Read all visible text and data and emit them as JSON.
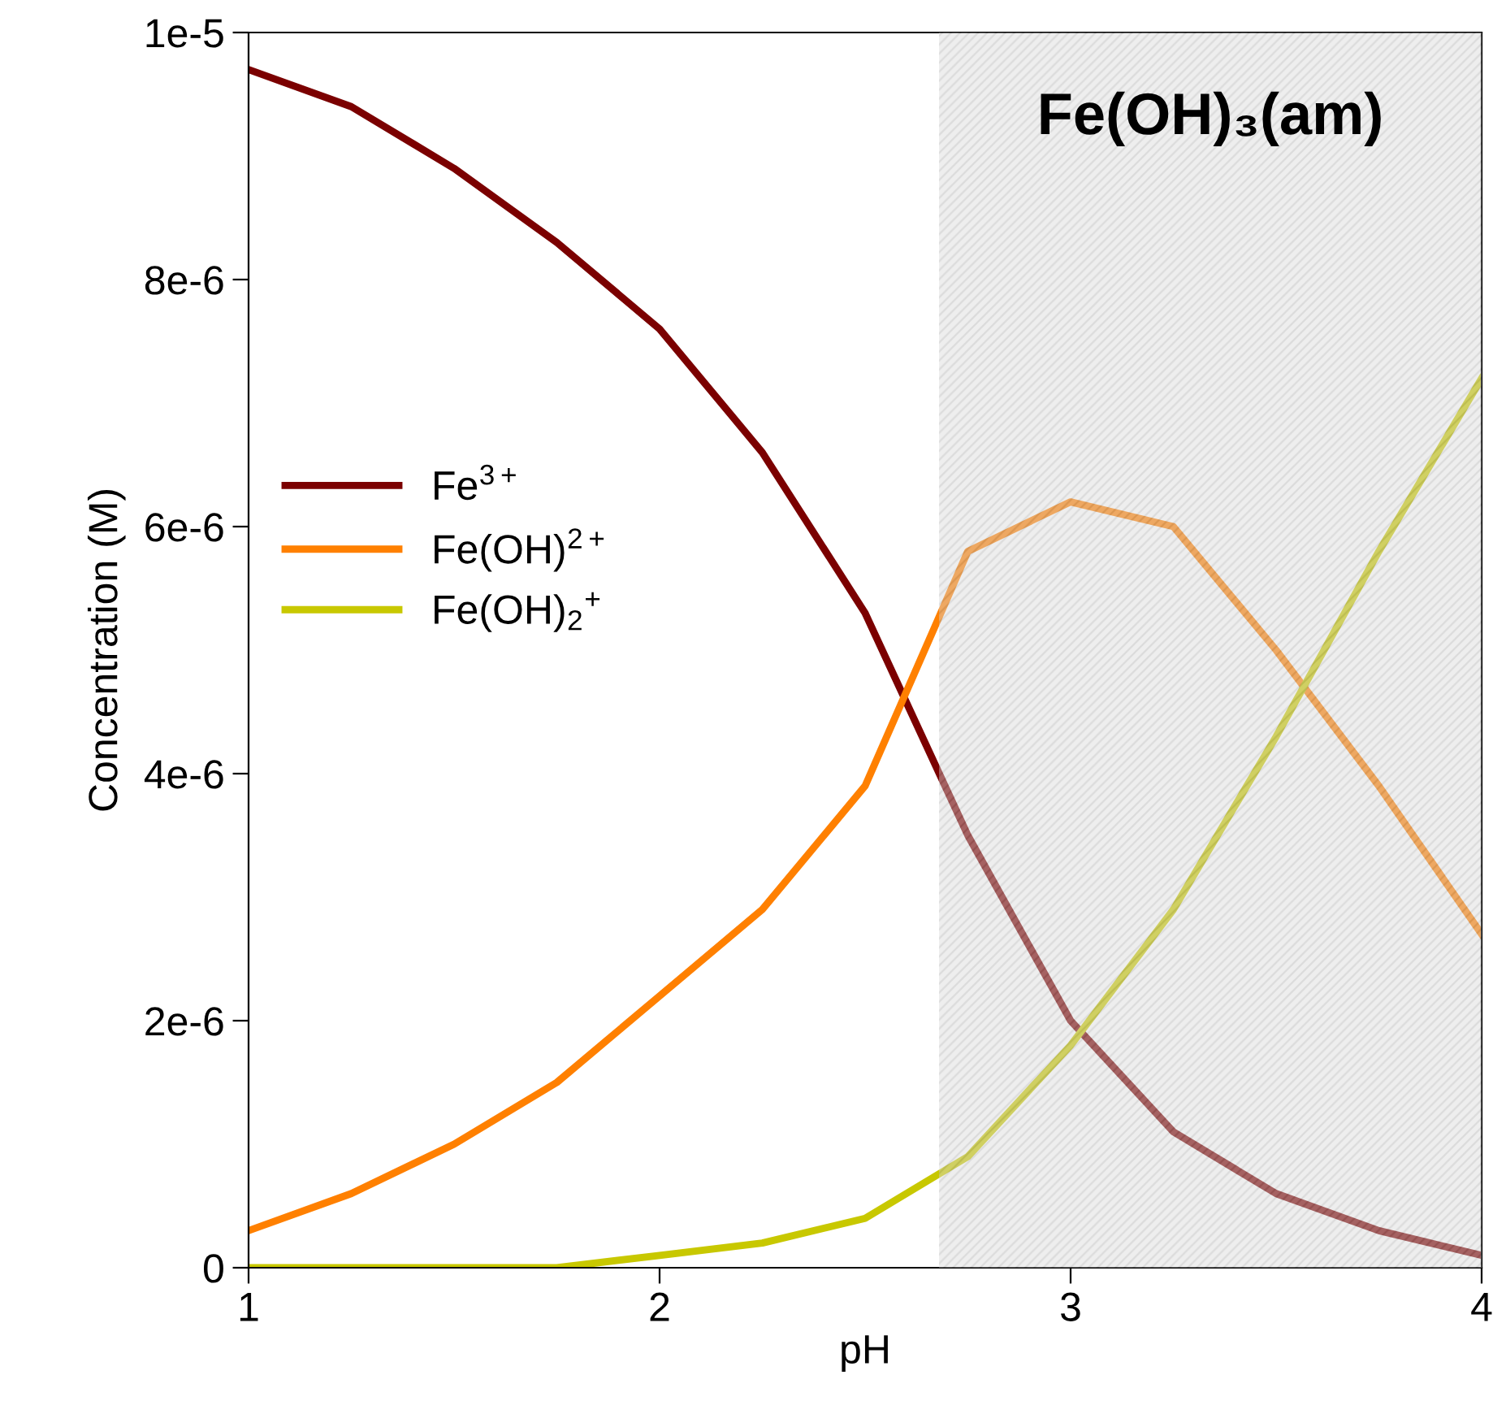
{
  "chart_data": {
    "type": "line",
    "xlabel": "pH",
    "ylabel": "Concentration (M)",
    "xlim": [
      1,
      4
    ],
    "xticks": [
      1,
      2,
      3,
      4
    ],
    "ylim": [
      0,
      1e-05
    ],
    "yticks": [
      {
        "value": 0,
        "label": "0"
      },
      {
        "value": 2e-06,
        "label": "2e-6"
      },
      {
        "value": 4e-06,
        "label": "4e-6"
      },
      {
        "value": 6e-06,
        "label": "6e-6"
      },
      {
        "value": 8e-06,
        "label": "8e-6"
      },
      {
        "value": 1e-05,
        "label": "1e-5"
      }
    ],
    "x": [
      1,
      1.25,
      1.5,
      1.75,
      2,
      2.25,
      2.5,
      2.75,
      3,
      3.25,
      3.5,
      3.75,
      4
    ],
    "series": [
      {
        "name": "Fe$^{3+}$",
        "color": "#7b0000",
        "values": [
          9.7e-06,
          9.4e-06,
          8.9e-06,
          8.3e-06,
          7.6e-06,
          6.6e-06,
          5.3e-06,
          3.5e-06,
          2e-06,
          1.1e-06,
          6e-07,
          3e-07,
          1e-07
        ]
      },
      {
        "name": "Fe(OH)$^{2+}$",
        "color": "#ff8000",
        "values": [
          3e-07,
          6e-07,
          1e-06,
          1.5e-06,
          2.2e-06,
          2.9e-06,
          3.9e-06,
          5.8e-06,
          6.2e-06,
          6e-06,
          5e-06,
          3.9e-06,
          2.7e-06
        ]
      },
      {
        "name": "Fe(OH)$_{2}$$^{+}$",
        "color": "#c8c800",
        "values": [
          0,
          0,
          0,
          0,
          1e-07,
          2e-07,
          4e-07,
          9e-07,
          1.8e-06,
          2.9e-06,
          4.3e-06,
          5.8e-06,
          7.2e-06
        ]
      }
    ],
    "bands": [
      {
        "axis": "x",
        "from": 2.68,
        "to": 4,
        "label": "Fe(OH)₃(am)",
        "color": "#b0b0b0"
      }
    ],
    "legend": "left",
    "grid": false,
    "marker": "none",
    "line_style": "solid"
  }
}
